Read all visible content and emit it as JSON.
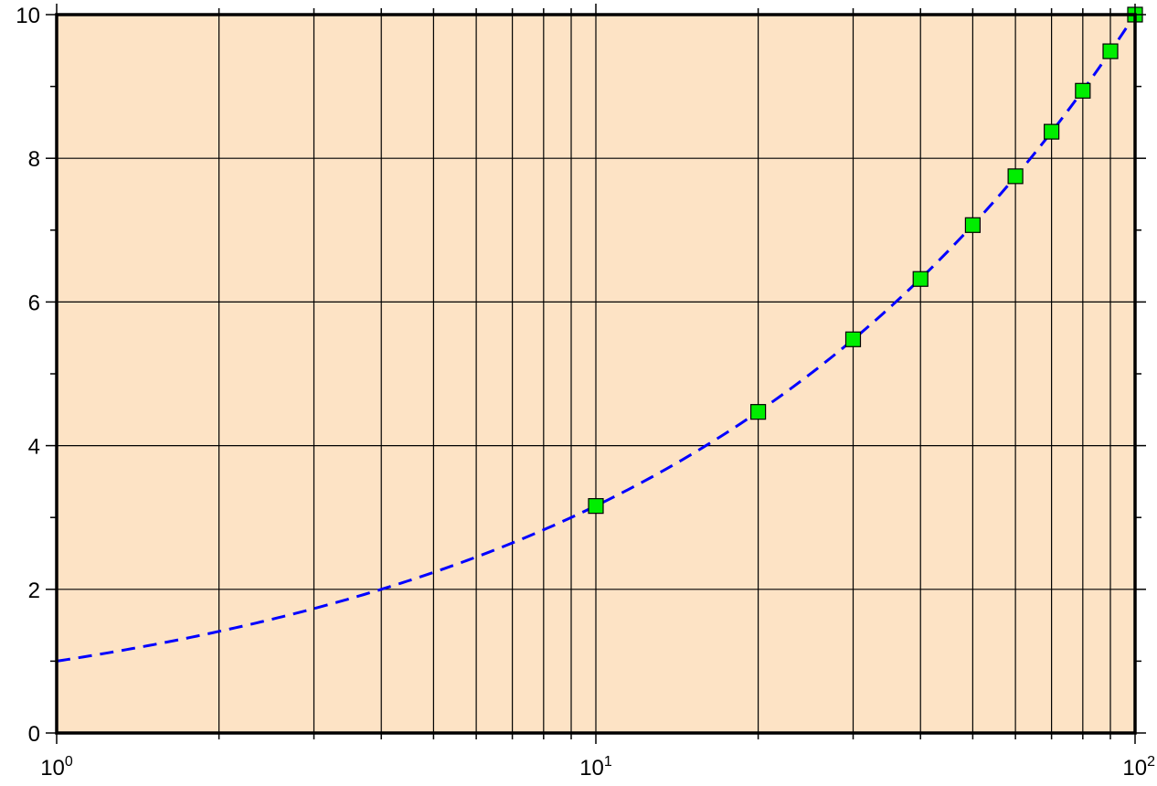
{
  "chart_data": {
    "type": "scatter",
    "title": "",
    "xlabel": "",
    "ylabel": "",
    "xscale": "log",
    "xlim": [
      1,
      100
    ],
    "ylim": [
      0,
      10
    ],
    "grid": true,
    "legend": "none",
    "colors": {
      "plot_background": "#fde3c5",
      "frame": "#000000",
      "grid": "#000000",
      "line": "#0000ff",
      "marker_fill": "#00ee00",
      "marker_edge": "#000000"
    },
    "x_ticks": [
      {
        "value": 1,
        "base": "10",
        "exp": "0"
      },
      {
        "value": 10,
        "base": "10",
        "exp": "1"
      },
      {
        "value": 100,
        "base": "10",
        "exp": "2"
      }
    ],
    "y_ticks": [
      {
        "value": 0,
        "label": "0"
      },
      {
        "value": 2,
        "label": "2"
      },
      {
        "value": 4,
        "label": "4"
      },
      {
        "value": 6,
        "label": "6"
      },
      {
        "value": 8,
        "label": "8"
      },
      {
        "value": 10,
        "label": "10"
      }
    ],
    "x_grid": [
      1,
      2,
      3,
      4,
      5,
      6,
      7,
      8,
      9,
      10,
      20,
      30,
      40,
      50,
      60,
      70,
      80,
      90,
      100
    ],
    "y_grid": [
      2,
      4,
      6,
      8
    ],
    "y_minor_ticks": [
      1,
      3,
      5,
      7,
      9
    ],
    "series": [
      {
        "kind": "line",
        "style": "dashed",
        "curve": "y = sqrt(x)",
        "x_range": [
          1,
          100
        ]
      },
      {
        "kind": "markers",
        "marker": "square",
        "x": [
          10,
          20,
          30,
          40,
          50,
          60,
          70,
          80,
          90,
          100
        ],
        "y": [
          3.16,
          4.47,
          5.48,
          6.32,
          7.07,
          7.75,
          8.37,
          8.94,
          9.49,
          10
        ]
      }
    ]
  }
}
